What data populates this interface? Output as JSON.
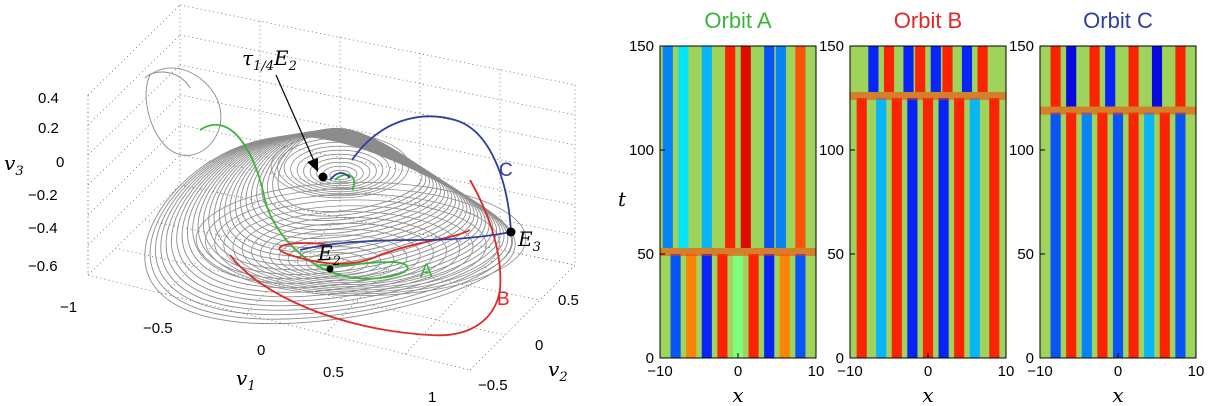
{
  "chart_data": [
    {
      "type": "line3d",
      "description_panel": "left",
      "axes": {
        "x": {
          "label_base": "v",
          "label_sub": "1",
          "ticks": [
            "−1",
            "−0.5",
            "0",
            "0.5",
            "1"
          ]
        },
        "y": {
          "label_base": "v",
          "label_sub": "2",
          "ticks": [
            "−0.5",
            "0",
            "0.5"
          ]
        },
        "z": {
          "label_base": "v",
          "label_sub": "3",
          "ticks": [
            "0.4",
            "0.2",
            "0",
            "−0.2",
            "−0.4",
            "−0.6"
          ]
        }
      },
      "grid": true,
      "annotations": {
        "tau_base": "τ",
        "tau_sub": "1/4",
        "tau_rest": "E",
        "tau_sub2": "2",
        "e2_base": "E",
        "e2_sub": "2",
        "e3_base": "E",
        "e3_sub": "3"
      },
      "series": [
        {
          "name": "A",
          "color": "#3cb43c"
        },
        {
          "name": "B",
          "color": "#e02828"
        },
        {
          "name": "C",
          "color": "#2f3fa0"
        }
      ],
      "background_trajectory_color": "#8c8c8c"
    },
    {
      "type": "heatmap",
      "panels": [
        {
          "title": "Orbit A",
          "color": "#3cb43c",
          "transition_t": 50
        },
        {
          "title": "Orbit B",
          "color": "#e02828",
          "transition_t": 125
        },
        {
          "title": "Orbit C",
          "color": "#2f3fa0",
          "transition_t": 118
        }
      ],
      "xlabel": "x",
      "ylabel": "t",
      "xlim": [
        -10,
        10
      ],
      "ylim": [
        0,
        150
      ],
      "xticks": [
        "−10",
        "0",
        "10"
      ],
      "yticks": [
        "0",
        "50",
        "100",
        "150"
      ],
      "colormap": "jet"
    }
  ]
}
